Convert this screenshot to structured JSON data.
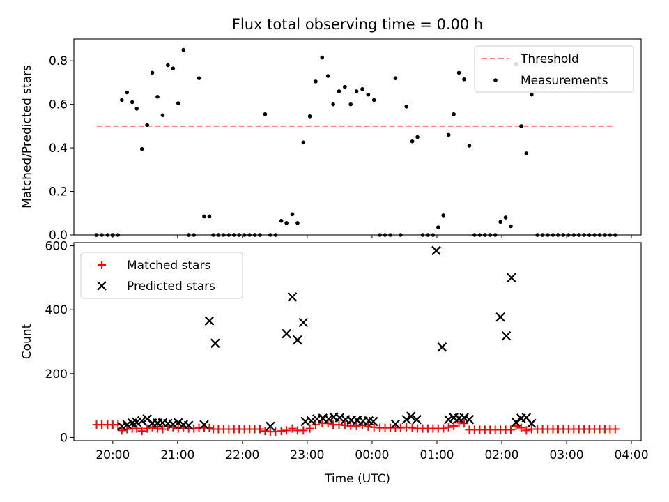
{
  "title": "Flux total observing time = 0.00 h",
  "chart_data": [
    {
      "type": "scatter",
      "title": "Flux total observing time = 0.00 h",
      "xlabel": "",
      "ylabel": "Matched/Predicted stars",
      "x_tick_labels": [
        "20:00",
        "21:00",
        "22:00",
        "23:00",
        "00:00",
        "01:00",
        "02:00",
        "03:00",
        "04:00"
      ],
      "xlim_hours": [
        19.4,
        28.15
      ],
      "ylim": [
        0.0,
        0.9
      ],
      "y_ticks": [
        0.0,
        0.2,
        0.4,
        0.6,
        0.8
      ],
      "legend": {
        "position": "top-right",
        "entries": [
          "Threshold",
          "Measurements"
        ]
      },
      "threshold": {
        "name": "Threshold",
        "value": 0.5,
        "x_range": [
          19.75,
          27.75
        ],
        "color": "#ff8080"
      },
      "series": [
        {
          "name": "Measurements",
          "color": "#000000",
          "points": [
            [
              19.75,
              0.0
            ],
            [
              19.83,
              0.0
            ],
            [
              19.92,
              0.0
            ],
            [
              20.0,
              0.0
            ],
            [
              20.08,
              0.0
            ],
            [
              20.14,
              0.62
            ],
            [
              20.22,
              0.655
            ],
            [
              20.3,
              0.61
            ],
            [
              20.37,
              0.58
            ],
            [
              20.45,
              0.395
            ],
            [
              20.53,
              0.505
            ],
            [
              20.61,
              0.745
            ],
            [
              20.69,
              0.635
            ],
            [
              20.77,
              0.55
            ],
            [
              20.85,
              0.78
            ],
            [
              20.93,
              0.765
            ],
            [
              21.01,
              0.605
            ],
            [
              21.09,
              0.85
            ],
            [
              21.17,
              0.0
            ],
            [
              21.25,
              0.0
            ],
            [
              21.33,
              0.72
            ],
            [
              21.41,
              0.085
            ],
            [
              21.49,
              0.085
            ],
            [
              21.55,
              0.0
            ],
            [
              21.63,
              0.0
            ],
            [
              21.71,
              0.0
            ],
            [
              21.79,
              0.0
            ],
            [
              21.87,
              0.0
            ],
            [
              21.95,
              0.0
            ],
            [
              22.03,
              0.0
            ],
            [
              22.11,
              0.0
            ],
            [
              22.19,
              0.0
            ],
            [
              22.27,
              0.0
            ],
            [
              22.35,
              0.555
            ],
            [
              22.43,
              0.0
            ],
            [
              22.51,
              0.0
            ],
            [
              22.6,
              0.065
            ],
            [
              22.68,
              0.055
            ],
            [
              22.77,
              0.095
            ],
            [
              22.85,
              0.055
            ],
            [
              22.94,
              0.425
            ],
            [
              23.04,
              0.545
            ],
            [
              23.13,
              0.705
            ],
            [
              23.23,
              0.815
            ],
            [
              23.32,
              0.73
            ],
            [
              23.4,
              0.6
            ],
            [
              23.49,
              0.66
            ],
            [
              23.58,
              0.68
            ],
            [
              23.67,
              0.6
            ],
            [
              23.76,
              0.66
            ],
            [
              23.85,
              0.67
            ],
            [
              23.94,
              0.645
            ],
            [
              24.03,
              0.62
            ],
            [
              24.12,
              0.0
            ],
            [
              24.2,
              0.0
            ],
            [
              24.28,
              0.0
            ],
            [
              24.36,
              0.72
            ],
            [
              24.44,
              0.0
            ],
            [
              24.53,
              0.59
            ],
            [
              24.62,
              0.43
            ],
            [
              24.7,
              0.45
            ],
            [
              24.78,
              0.0
            ],
            [
              24.86,
              0.0
            ],
            [
              24.94,
              0.0
            ],
            [
              25.02,
              0.035
            ],
            [
              25.1,
              0.09
            ],
            [
              25.18,
              0.46
            ],
            [
              25.26,
              0.555
            ],
            [
              25.34,
              0.745
            ],
            [
              25.42,
              0.715
            ],
            [
              25.5,
              0.41
            ],
            [
              25.58,
              0.0
            ],
            [
              25.66,
              0.0
            ],
            [
              25.74,
              0.0
            ],
            [
              25.82,
              0.0
            ],
            [
              25.9,
              0.0
            ],
            [
              25.98,
              0.06
            ],
            [
              26.06,
              0.08
            ],
            [
              26.14,
              0.04
            ],
            [
              26.22,
              0.785
            ],
            [
              26.3,
              0.5
            ],
            [
              26.38,
              0.375
            ],
            [
              26.46,
              0.645
            ],
            [
              26.55,
              0.0
            ],
            [
              26.63,
              0.0
            ],
            [
              26.71,
              0.0
            ],
            [
              26.79,
              0.0
            ],
            [
              26.87,
              0.0
            ],
            [
              26.95,
              0.0
            ],
            [
              27.03,
              0.0
            ],
            [
              27.11,
              0.0
            ],
            [
              27.19,
              0.0
            ],
            [
              27.27,
              0.0
            ],
            [
              27.35,
              0.0
            ],
            [
              27.43,
              0.0
            ],
            [
              27.51,
              0.0
            ],
            [
              27.59,
              0.0
            ],
            [
              27.67,
              0.0
            ],
            [
              27.75,
              0.0
            ]
          ]
        }
      ]
    },
    {
      "type": "scatter",
      "title": "",
      "xlabel": "Time (UTC)",
      "ylabel": "Count",
      "x_tick_labels": [
        "20:00",
        "21:00",
        "22:00",
        "23:00",
        "00:00",
        "01:00",
        "02:00",
        "03:00",
        "04:00"
      ],
      "xlim_hours": [
        19.4,
        28.15
      ],
      "ylim": [
        -10,
        610
      ],
      "y_ticks": [
        0,
        200,
        400,
        600
      ],
      "legend": {
        "position": "top-left",
        "entries": [
          "Matched stars",
          "Predicted stars"
        ]
      },
      "series": [
        {
          "name": "Matched stars",
          "marker": "plus",
          "color": "#ff0000",
          "points": [
            [
              19.75,
              40
            ],
            [
              19.83,
              40
            ],
            [
              19.92,
              40
            ],
            [
              20.0,
              40
            ],
            [
              20.08,
              40
            ],
            [
              20.14,
              22
            ],
            [
              20.22,
              26
            ],
            [
              20.3,
              28
            ],
            [
              20.37,
              28
            ],
            [
              20.45,
              20
            ],
            [
              20.53,
              28
            ],
            [
              20.61,
              32
            ],
            [
              20.69,
              28
            ],
            [
              20.77,
              26
            ],
            [
              20.85,
              34
            ],
            [
              20.93,
              32
            ],
            [
              21.01,
              28
            ],
            [
              21.09,
              32
            ],
            [
              21.17,
              28
            ],
            [
              21.25,
              28
            ],
            [
              21.33,
              30
            ],
            [
              21.41,
              30
            ],
            [
              21.49,
              30
            ],
            [
              21.55,
              26
            ],
            [
              21.63,
              26
            ],
            [
              21.71,
              26
            ],
            [
              21.79,
              26
            ],
            [
              21.87,
              26
            ],
            [
              21.95,
              26
            ],
            [
              22.03,
              26
            ],
            [
              22.11,
              26
            ],
            [
              22.19,
              26
            ],
            [
              22.27,
              26
            ],
            [
              22.35,
              20
            ],
            [
              22.43,
              18
            ],
            [
              22.51,
              18
            ],
            [
              22.6,
              20
            ],
            [
              22.68,
              22
            ],
            [
              22.77,
              28
            ],
            [
              22.85,
              22
            ],
            [
              22.94,
              22
            ],
            [
              23.04,
              28
            ],
            [
              23.13,
              40
            ],
            [
              23.23,
              45
            ],
            [
              23.32,
              44
            ],
            [
              23.4,
              40
            ],
            [
              23.49,
              40
            ],
            [
              23.58,
              38
            ],
            [
              23.67,
              36
            ],
            [
              23.76,
              36
            ],
            [
              23.85,
              38
            ],
            [
              23.94,
              34
            ],
            [
              24.03,
              32
            ],
            [
              24.12,
              30
            ],
            [
              24.2,
              30
            ],
            [
              24.28,
              30
            ],
            [
              24.36,
              30
            ],
            [
              24.44,
              30
            ],
            [
              24.53,
              32
            ],
            [
              24.62,
              30
            ],
            [
              24.7,
              28
            ],
            [
              24.78,
              28
            ],
            [
              24.86,
              28
            ],
            [
              24.94,
              28
            ],
            [
              25.02,
              28
            ],
            [
              25.1,
              28
            ],
            [
              25.18,
              32
            ],
            [
              25.26,
              36
            ],
            [
              25.34,
              46
            ],
            [
              25.42,
              44
            ],
            [
              25.5,
              24
            ],
            [
              25.58,
              24
            ],
            [
              25.66,
              24
            ],
            [
              25.74,
              24
            ],
            [
              25.82,
              24
            ],
            [
              25.9,
              24
            ],
            [
              25.98,
              24
            ],
            [
              26.06,
              24
            ],
            [
              26.14,
              24
            ],
            [
              26.22,
              36
            ],
            [
              26.3,
              30
            ],
            [
              26.38,
              22
            ],
            [
              26.46,
              26
            ],
            [
              26.55,
              26
            ],
            [
              26.63,
              26
            ],
            [
              26.71,
              26
            ],
            [
              26.79,
              26
            ],
            [
              26.87,
              26
            ],
            [
              26.95,
              26
            ],
            [
              27.03,
              26
            ],
            [
              27.11,
              26
            ],
            [
              27.19,
              26
            ],
            [
              27.27,
              26
            ],
            [
              27.35,
              26
            ],
            [
              27.43,
              26
            ],
            [
              27.51,
              26
            ],
            [
              27.59,
              26
            ],
            [
              27.67,
              26
            ],
            [
              27.75,
              26
            ]
          ]
        },
        {
          "name": "Predicted stars",
          "marker": "x",
          "color": "#000000",
          "points": [
            [
              20.14,
              35
            ],
            [
              20.22,
              40
            ],
            [
              20.3,
              45
            ],
            [
              20.37,
              48
            ],
            [
              20.45,
              52
            ],
            [
              20.53,
              58
            ],
            [
              20.61,
              45
            ],
            [
              20.69,
              45
            ],
            [
              20.77,
              46
            ],
            [
              20.85,
              44
            ],
            [
              20.93,
              42
            ],
            [
              21.01,
              46
            ],
            [
              21.09,
              40
            ],
            [
              21.17,
              38
            ],
            [
              21.41,
              40
            ],
            [
              21.49,
              365
            ],
            [
              21.58,
              295
            ],
            [
              22.43,
              35
            ],
            [
              22.68,
              325
            ],
            [
              22.77,
              440
            ],
            [
              22.85,
              305
            ],
            [
              22.94,
              360
            ],
            [
              22.97,
              50
            ],
            [
              23.06,
              52
            ],
            [
              23.15,
              58
            ],
            [
              23.24,
              60
            ],
            [
              23.33,
              58
            ],
            [
              23.41,
              64
            ],
            [
              23.5,
              62
            ],
            [
              23.59,
              56
            ],
            [
              23.68,
              54
            ],
            [
              23.77,
              54
            ],
            [
              23.86,
              52
            ],
            [
              23.95,
              52
            ],
            [
              24.02,
              50
            ],
            [
              24.36,
              42
            ],
            [
              24.53,
              56
            ],
            [
              24.6,
              66
            ],
            [
              24.69,
              56
            ],
            [
              24.99,
              585
            ],
            [
              25.08,
              283
            ],
            [
              25.18,
              56
            ],
            [
              25.26,
              62
            ],
            [
              25.34,
              60
            ],
            [
              25.42,
              62
            ],
            [
              25.5,
              56
            ],
            [
              25.98,
              377
            ],
            [
              26.07,
              318
            ],
            [
              26.15,
              500
            ],
            [
              26.22,
              48
            ],
            [
              26.3,
              60
            ],
            [
              26.38,
              62
            ],
            [
              26.46,
              44
            ]
          ]
        }
      ]
    }
  ]
}
